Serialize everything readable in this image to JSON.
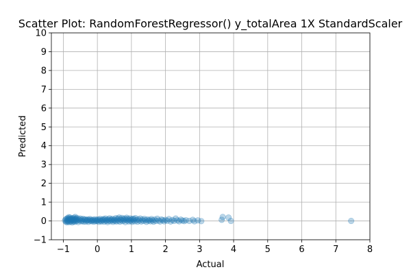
{
  "chart_data": {
    "type": "scatter",
    "title": "Scatter Plot: RandomForestRegressor() y_totalArea 1X StandardScaler",
    "xlabel": "Actual",
    "ylabel": "Predicted",
    "xlim": [
      -1.35,
      8.0
    ],
    "ylim": [
      -1,
      10
    ],
    "xticks": [
      -1,
      0,
      1,
      2,
      3,
      4,
      5,
      6,
      7,
      8
    ],
    "yticks": [
      -1,
      0,
      1,
      2,
      3,
      4,
      5,
      6,
      7,
      8,
      9,
      10
    ],
    "grid": true,
    "point_color": "#1f77b4",
    "point_alpha": 0.3,
    "points": [
      [
        -0.95,
        0.02
      ],
      [
        -0.93,
        0.08
      ],
      [
        -0.92,
        -0.05
      ],
      [
        -0.9,
        0.12
      ],
      [
        -0.9,
        0.0
      ],
      [
        -0.89,
        -0.07
      ],
      [
        -0.88,
        0.05
      ],
      [
        -0.87,
        0.15
      ],
      [
        -0.86,
        -0.02
      ],
      [
        -0.85,
        0.09
      ],
      [
        -0.84,
        0.2
      ],
      [
        -0.83,
        -0.06
      ],
      [
        -0.82,
        0.03
      ],
      [
        -0.81,
        0.11
      ],
      [
        -0.8,
        0.18
      ],
      [
        -0.79,
        -0.04
      ],
      [
        -0.78,
        0.07
      ],
      [
        -0.77,
        0.13
      ],
      [
        -0.76,
        0.0
      ],
      [
        -0.75,
        0.06
      ],
      [
        -0.74,
        -0.08
      ],
      [
        -0.73,
        0.14
      ],
      [
        -0.72,
        0.04
      ],
      [
        -0.71,
        0.1
      ],
      [
        -0.7,
        -0.03
      ],
      [
        -0.69,
        0.17
      ],
      [
        -0.68,
        0.02
      ],
      [
        -0.67,
        0.08
      ],
      [
        -0.66,
        -0.05
      ],
      [
        -0.65,
        0.21
      ],
      [
        -0.64,
        0.05
      ],
      [
        -0.63,
        0.12
      ],
      [
        -0.62,
        -0.01
      ],
      [
        -0.61,
        0.09
      ],
      [
        -0.6,
        0.16
      ],
      [
        -0.58,
        0.03
      ],
      [
        -0.56,
        -0.06
      ],
      [
        -0.54,
        0.1
      ],
      [
        -0.52,
        0.04
      ],
      [
        -0.5,
        0.13
      ],
      [
        -0.48,
        -0.02
      ],
      [
        -0.46,
        0.07
      ],
      [
        -0.44,
        0.0
      ],
      [
        -0.42,
        0.11
      ],
      [
        -0.4,
        -0.04
      ],
      [
        -0.38,
        0.06
      ],
      [
        -0.36,
        0.09
      ],
      [
        -0.34,
        -0.03
      ],
      [
        -0.32,
        0.05
      ],
      [
        -0.3,
        0.02
      ],
      [
        -0.28,
        0.08
      ],
      [
        -0.26,
        -0.05
      ],
      [
        -0.24,
        0.04
      ],
      [
        -0.22,
        0.1
      ],
      [
        -0.2,
        0.0
      ],
      [
        -0.18,
        0.06
      ],
      [
        -0.16,
        -0.02
      ],
      [
        -0.14,
        0.03
      ],
      [
        -0.12,
        0.07
      ],
      [
        -0.1,
        -0.04
      ],
      [
        -0.08,
        0.02
      ],
      [
        -0.06,
        0.09
      ],
      [
        -0.04,
        -0.01
      ],
      [
        -0.02,
        0.05
      ],
      [
        0.0,
        0.0
      ],
      [
        0.02,
        0.08
      ],
      [
        0.04,
        -0.05
      ],
      [
        0.06,
        0.04
      ],
      [
        0.08,
        0.11
      ],
      [
        0.1,
        0.01
      ],
      [
        0.12,
        -0.03
      ],
      [
        0.14,
        0.07
      ],
      [
        0.16,
        0.03
      ],
      [
        0.18,
        0.1
      ],
      [
        0.2,
        -0.04
      ],
      [
        0.22,
        0.06
      ],
      [
        0.24,
        0.13
      ],
      [
        0.26,
        0.0
      ],
      [
        0.28,
        0.05
      ],
      [
        0.3,
        -0.06
      ],
      [
        0.32,
        0.09
      ],
      [
        0.34,
        0.02
      ],
      [
        0.36,
        0.14
      ],
      [
        0.38,
        -0.02
      ],
      [
        0.4,
        0.07
      ],
      [
        0.42,
        0.04
      ],
      [
        0.44,
        0.11
      ],
      [
        0.46,
        -0.05
      ],
      [
        0.48,
        0.03
      ],
      [
        0.5,
        0.08
      ],
      [
        0.52,
        0.0
      ],
      [
        0.54,
        0.15
      ],
      [
        0.56,
        -0.03
      ],
      [
        0.58,
        0.06
      ],
      [
        0.6,
        0.12
      ],
      [
        0.62,
        0.01
      ],
      [
        0.64,
        0.18
      ],
      [
        0.66,
        -0.04
      ],
      [
        0.68,
        0.09
      ],
      [
        0.7,
        0.05
      ],
      [
        0.72,
        0.16
      ],
      [
        0.74,
        -0.01
      ],
      [
        0.76,
        0.1
      ],
      [
        0.78,
        0.03
      ],
      [
        0.8,
        0.13
      ],
      [
        0.82,
        -0.06
      ],
      [
        0.84,
        0.07
      ],
      [
        0.86,
        0.17
      ],
      [
        0.88,
        0.02
      ],
      [
        0.9,
        0.11
      ],
      [
        0.92,
        -0.03
      ],
      [
        0.94,
        0.06
      ],
      [
        0.96,
        0.14
      ],
      [
        0.98,
        0.0
      ],
      [
        1.0,
        0.08
      ],
      [
        1.02,
        -0.05
      ],
      [
        1.04,
        0.12
      ],
      [
        1.06,
        0.03
      ],
      [
        1.08,
        0.1
      ],
      [
        1.1,
        -0.02
      ],
      [
        1.12,
        0.15
      ],
      [
        1.15,
        0.05
      ],
      [
        1.18,
        -0.04
      ],
      [
        1.2,
        0.09
      ],
      [
        1.23,
        0.02
      ],
      [
        1.26,
        0.13
      ],
      [
        1.29,
        -0.03
      ],
      [
        1.32,
        0.07
      ],
      [
        1.35,
        0.0
      ],
      [
        1.38,
        0.11
      ],
      [
        1.41,
        0.04
      ],
      [
        1.44,
        -0.05
      ],
      [
        1.47,
        0.08
      ],
      [
        1.5,
        0.01
      ],
      [
        1.53,
        0.06
      ],
      [
        1.56,
        -0.02
      ],
      [
        1.59,
        0.1
      ],
      [
        1.62,
        0.03
      ],
      [
        1.65,
        -0.04
      ],
      [
        1.68,
        0.07
      ],
      [
        1.72,
        0.0
      ],
      [
        1.76,
        0.12
      ],
      [
        1.8,
        0.02
      ],
      [
        1.84,
        -0.03
      ],
      [
        1.88,
        0.08
      ],
      [
        1.92,
        0.04
      ],
      [
        1.96,
        -0.02
      ],
      [
        2.0,
        0.06
      ],
      [
        2.05,
        0.01
      ],
      [
        2.1,
        0.1
      ],
      [
        2.15,
        -0.03
      ],
      [
        2.2,
        0.05
      ],
      [
        2.25,
        0.0
      ],
      [
        2.3,
        0.13
      ],
      [
        2.35,
        0.03
      ],
      [
        2.4,
        -0.02
      ],
      [
        2.45,
        0.07
      ],
      [
        2.5,
        0.02
      ],
      [
        2.55,
        -0.01
      ],
      [
        2.6,
        0.04
      ],
      [
        2.7,
        0.0
      ],
      [
        2.8,
        0.06
      ],
      [
        2.85,
        -0.02
      ],
      [
        2.95,
        0.03
      ],
      [
        3.05,
        -0.01
      ],
      [
        3.65,
        0.06
      ],
      [
        3.68,
        0.21
      ],
      [
        3.85,
        0.18
      ],
      [
        3.92,
        0.0
      ],
      [
        7.45,
        0.0
      ]
    ]
  }
}
